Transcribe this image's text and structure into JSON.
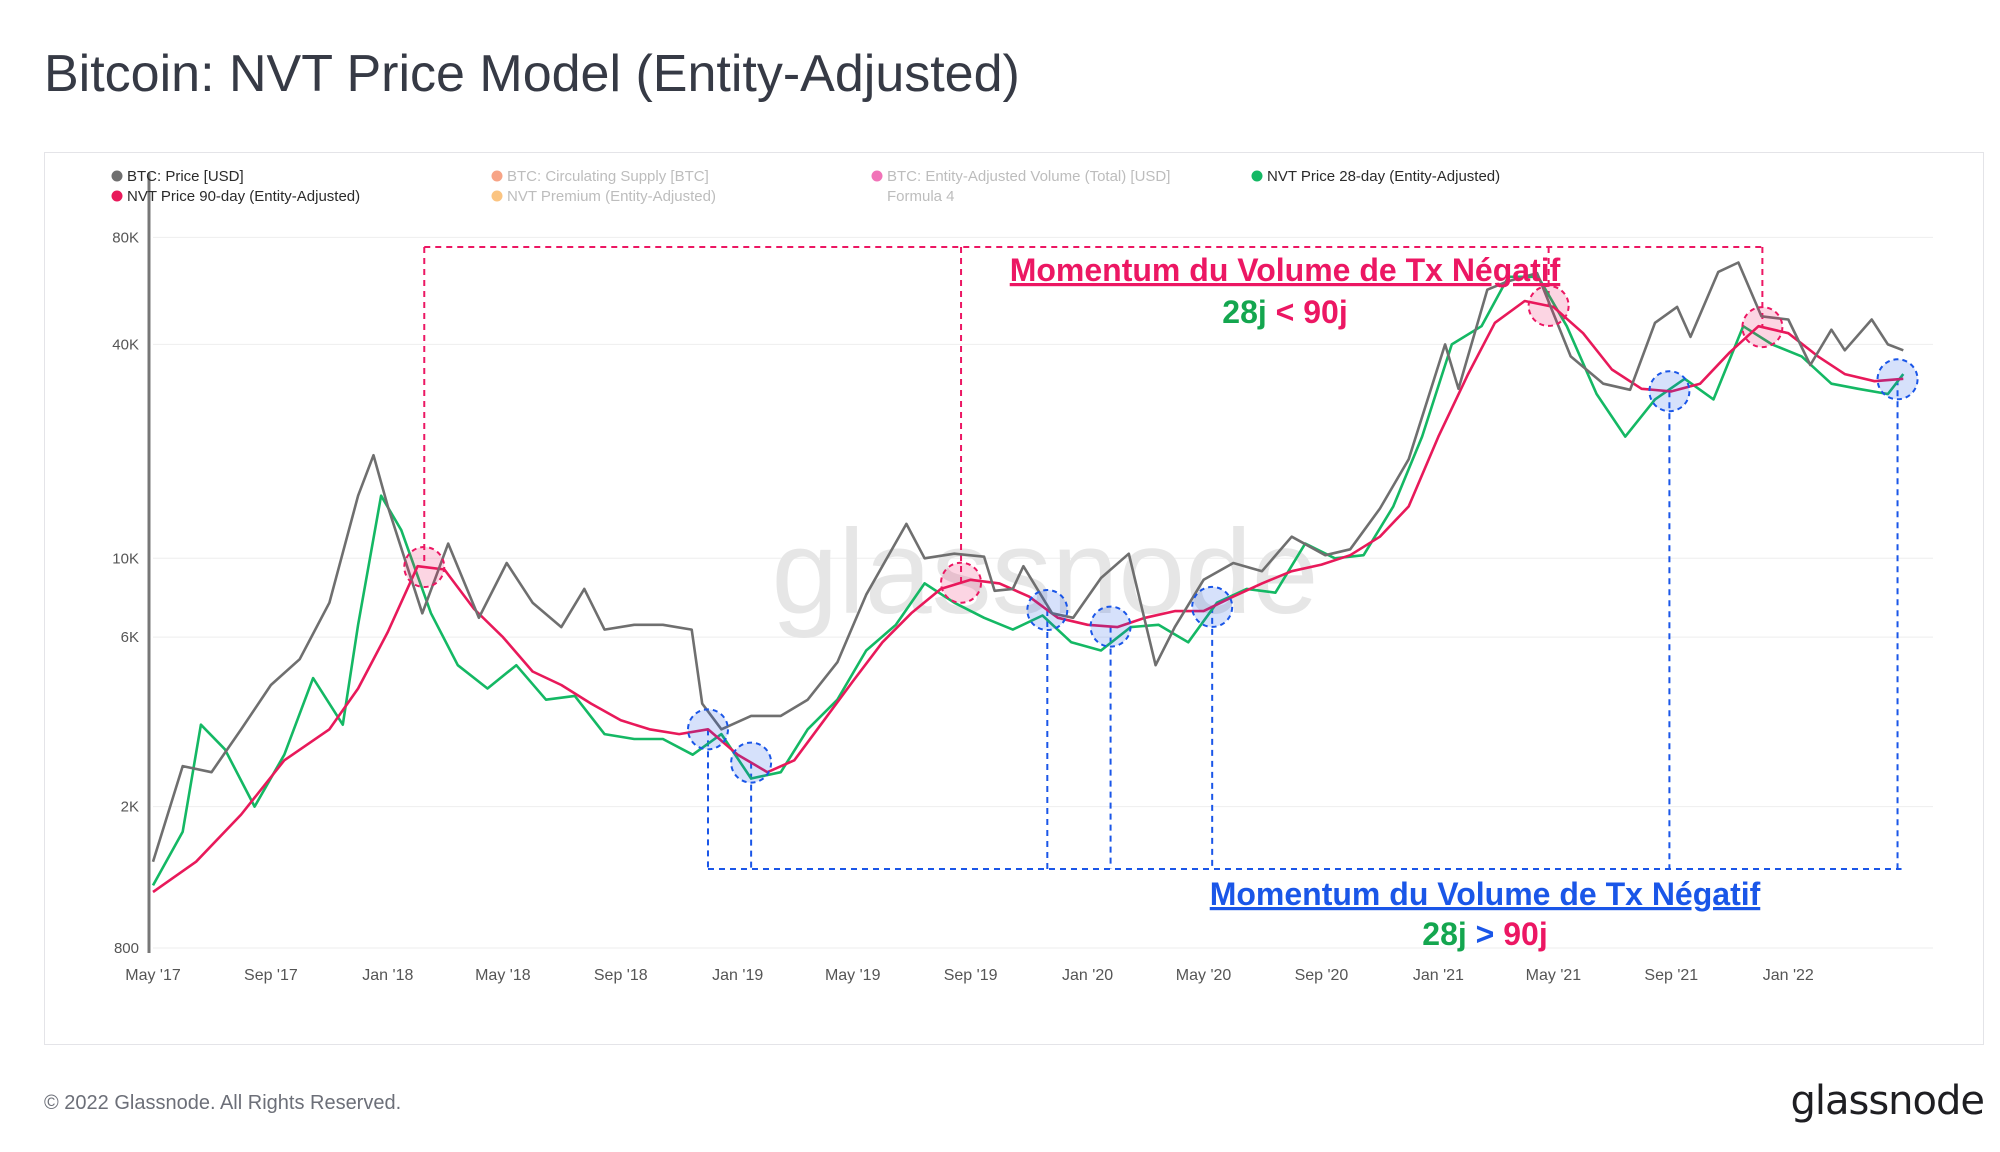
{
  "header": {
    "title": "Bitcoin: NVT Price Model (Entity-Adjusted)"
  },
  "footer": {
    "copyright": "© 2022 Glassnode. All Rights Reserved.",
    "logo": "glassnode"
  },
  "watermark": "glassnode",
  "chart_data": {
    "type": "line",
    "log_scale": true,
    "ylim": [
      800,
      100000
    ],
    "yticks": [
      {
        "label": "800",
        "value": 800
      },
      {
        "label": "2K",
        "value": 2000
      },
      {
        "label": "6K",
        "value": 6000
      },
      {
        "label": "10K",
        "value": 10000
      },
      {
        "label": "40K",
        "value": 40000
      },
      {
        "label": "80K",
        "value": 80000
      }
    ],
    "xlim": [
      "2017-05-01",
      "2022-06-01"
    ],
    "xticks": [
      {
        "label": "May '17",
        "date": "2017-05-01"
      },
      {
        "label": "Sep '17",
        "date": "2017-09-01"
      },
      {
        "label": "Jan '18",
        "date": "2018-01-01"
      },
      {
        "label": "May '18",
        "date": "2018-05-01"
      },
      {
        "label": "Sep '18",
        "date": "2018-09-01"
      },
      {
        "label": "Jan '19",
        "date": "2019-01-01"
      },
      {
        "label": "May '19",
        "date": "2019-05-01"
      },
      {
        "label": "Sep '19",
        "date": "2019-09-01"
      },
      {
        "label": "Jan '20",
        "date": "2020-01-01"
      },
      {
        "label": "May '20",
        "date": "2020-05-01"
      },
      {
        "label": "Sep '20",
        "date": "2020-09-01"
      },
      {
        "label": "Jan '21",
        "date": "2021-01-01"
      },
      {
        "label": "May '21",
        "date": "2021-05-01"
      },
      {
        "label": "Sep '21",
        "date": "2021-09-01"
      },
      {
        "label": "Jan '22",
        "date": "2022-01-01"
      }
    ],
    "legend": [
      {
        "label": "BTC: Price [USD]",
        "color": "#6f6f6f",
        "active": true
      },
      {
        "label": "BTC: Circulating Supply [BTC]",
        "color": "#f15a22",
        "active": false
      },
      {
        "label": "BTC: Entity-Adjusted Volume (Total) [USD]",
        "color": "#e6007e",
        "active": false
      },
      {
        "label": "NVT Price 28-day (Entity-Adjusted)",
        "color": "#14b864",
        "active": true
      },
      {
        "label": "NVT Price 90-day (Entity-Adjusted)",
        "color": "#e8195a",
        "active": true
      },
      {
        "label": "NVT Premium (Entity-Adjusted)",
        "color": "#f7931a",
        "active": false
      },
      {
        "label": "Formula 4",
        "color": "",
        "active": false
      }
    ],
    "series": [
      {
        "name": "BTC: Price [USD]",
        "color": "#6f6f6f",
        "points": [
          [
            "2017-05-01",
            1400
          ],
          [
            "2017-06-01",
            2600
          ],
          [
            "2017-07-01",
            2500
          ],
          [
            "2017-08-01",
            3300
          ],
          [
            "2017-09-01",
            4400
          ],
          [
            "2017-10-01",
            5200
          ],
          [
            "2017-11-01",
            7500
          ],
          [
            "2017-12-01",
            15000
          ],
          [
            "2017-12-17",
            19500
          ],
          [
            "2018-01-01",
            14000
          ],
          [
            "2018-02-06",
            7000
          ],
          [
            "2018-03-05",
            11000
          ],
          [
            "2018-04-06",
            6800
          ],
          [
            "2018-05-05",
            9700
          ],
          [
            "2018-06-01",
            7500
          ],
          [
            "2018-07-01",
            6400
          ],
          [
            "2018-07-25",
            8200
          ],
          [
            "2018-08-15",
            6300
          ],
          [
            "2018-09-15",
            6500
          ],
          [
            "2018-10-15",
            6500
          ],
          [
            "2018-11-14",
            6300
          ],
          [
            "2018-11-25",
            3900
          ],
          [
            "2018-12-15",
            3300
          ],
          [
            "2019-01-15",
            3600
          ],
          [
            "2019-02-15",
            3600
          ],
          [
            "2019-03-15",
            4000
          ],
          [
            "2019-04-15",
            5100
          ],
          [
            "2019-05-15",
            7900
          ],
          [
            "2019-06-26",
            12500
          ],
          [
            "2019-07-15",
            10000
          ],
          [
            "2019-08-15",
            10300
          ],
          [
            "2019-09-15",
            10100
          ],
          [
            "2019-09-26",
            8100
          ],
          [
            "2019-10-15",
            8200
          ],
          [
            "2019-10-26",
            9500
          ],
          [
            "2019-11-25",
            7000
          ],
          [
            "2019-12-17",
            6800
          ],
          [
            "2020-01-15",
            8800
          ],
          [
            "2020-02-13",
            10300
          ],
          [
            "2020-03-12",
            5000
          ],
          [
            "2020-04-01",
            6400
          ],
          [
            "2020-05-01",
            8700
          ],
          [
            "2020-06-01",
            9700
          ],
          [
            "2020-07-01",
            9200
          ],
          [
            "2020-08-01",
            11500
          ],
          [
            "2020-09-05",
            10200
          ],
          [
            "2020-10-01",
            10600
          ],
          [
            "2020-11-01",
            13800
          ],
          [
            "2020-12-01",
            19000
          ],
          [
            "2021-01-08",
            40000
          ],
          [
            "2021-01-22",
            30000
          ],
          [
            "2021-02-21",
            57000
          ],
          [
            "2021-03-13",
            60000
          ],
          [
            "2021-04-14",
            63500
          ],
          [
            "2021-05-19",
            37000
          ],
          [
            "2021-06-22",
            31000
          ],
          [
            "2021-07-20",
            29800
          ],
          [
            "2021-08-15",
            46000
          ],
          [
            "2021-09-07",
            51000
          ],
          [
            "2021-09-21",
            42000
          ],
          [
            "2021-10-20",
            64000
          ],
          [
            "2021-11-10",
            68000
          ],
          [
            "2021-12-04",
            48000
          ],
          [
            "2022-01-01",
            47000
          ],
          [
            "2022-01-24",
            35000
          ],
          [
            "2022-02-15",
            44000
          ],
          [
            "2022-03-01",
            38500
          ],
          [
            "2022-03-29",
            47000
          ],
          [
            "2022-04-15",
            40000
          ],
          [
            "2022-05-01",
            38500
          ]
        ]
      },
      {
        "name": "NVT Price 28-day (Entity-Adjusted)",
        "color": "#14b864",
        "points": [
          [
            "2017-05-01",
            1200
          ],
          [
            "2017-06-01",
            1700
          ],
          [
            "2017-06-20",
            3400
          ],
          [
            "2017-07-15",
            2900
          ],
          [
            "2017-08-15",
            2000
          ],
          [
            "2017-09-15",
            2800
          ],
          [
            "2017-10-15",
            4600
          ],
          [
            "2017-11-15",
            3400
          ],
          [
            "2017-12-01",
            6500
          ],
          [
            "2017-12-25",
            15000
          ],
          [
            "2018-01-15",
            12000
          ],
          [
            "2018-02-15",
            7000
          ],
          [
            "2018-03-15",
            5000
          ],
          [
            "2018-04-15",
            4300
          ],
          [
            "2018-05-15",
            5000
          ],
          [
            "2018-06-15",
            4000
          ],
          [
            "2018-07-15",
            4100
          ],
          [
            "2018-08-15",
            3200
          ],
          [
            "2018-09-15",
            3100
          ],
          [
            "2018-10-15",
            3100
          ],
          [
            "2018-11-15",
            2800
          ],
          [
            "2018-12-15",
            3200
          ],
          [
            "2019-01-15",
            2400
          ],
          [
            "2019-02-15",
            2500
          ],
          [
            "2019-03-15",
            3300
          ],
          [
            "2019-04-15",
            4000
          ],
          [
            "2019-05-15",
            5500
          ],
          [
            "2019-06-15",
            6500
          ],
          [
            "2019-07-15",
            8500
          ],
          [
            "2019-08-15",
            7500
          ],
          [
            "2019-09-15",
            6800
          ],
          [
            "2019-10-15",
            6300
          ],
          [
            "2019-11-15",
            6900
          ],
          [
            "2019-12-15",
            5800
          ],
          [
            "2020-01-15",
            5500
          ],
          [
            "2020-02-15",
            6400
          ],
          [
            "2020-03-15",
            6500
          ],
          [
            "2020-04-15",
            5800
          ],
          [
            "2020-05-15",
            7500
          ],
          [
            "2020-06-15",
            8200
          ],
          [
            "2020-07-15",
            8000
          ],
          [
            "2020-08-15",
            11000
          ],
          [
            "2020-09-15",
            10000
          ],
          [
            "2020-10-15",
            10200
          ],
          [
            "2020-11-15",
            14000
          ],
          [
            "2020-12-15",
            22000
          ],
          [
            "2021-01-15",
            40000
          ],
          [
            "2021-02-15",
            45000
          ],
          [
            "2021-03-15",
            62000
          ],
          [
            "2021-04-15",
            62000
          ],
          [
            "2021-05-15",
            45000
          ],
          [
            "2021-06-15",
            29000
          ],
          [
            "2021-07-15",
            22000
          ],
          [
            "2021-08-15",
            28000
          ],
          [
            "2021-09-15",
            32000
          ],
          [
            "2021-10-15",
            28000
          ],
          [
            "2021-11-15",
            45000
          ],
          [
            "2021-12-15",
            40000
          ],
          [
            "2022-01-15",
            37000
          ],
          [
            "2022-02-15",
            31000
          ],
          [
            "2022-03-15",
            30000
          ],
          [
            "2022-04-15",
            29000
          ],
          [
            "2022-05-01",
            33000
          ]
        ]
      },
      {
        "name": "NVT Price 90-day (Entity-Adjusted)",
        "color": "#e8195a",
        "points": [
          [
            "2017-05-01",
            1150
          ],
          [
            "2017-06-15",
            1400
          ],
          [
            "2017-08-01",
            1900
          ],
          [
            "2017-09-15",
            2700
          ],
          [
            "2017-11-01",
            3300
          ],
          [
            "2017-12-01",
            4300
          ],
          [
            "2018-01-01",
            6200
          ],
          [
            "2018-02-01",
            9500
          ],
          [
            "2018-03-01",
            9300
          ],
          [
            "2018-04-01",
            7200
          ],
          [
            "2018-05-01",
            6000
          ],
          [
            "2018-06-01",
            4800
          ],
          [
            "2018-07-01",
            4400
          ],
          [
            "2018-08-01",
            3900
          ],
          [
            "2018-09-01",
            3500
          ],
          [
            "2018-10-01",
            3300
          ],
          [
            "2018-11-01",
            3200
          ],
          [
            "2018-12-01",
            3300
          ],
          [
            "2019-01-01",
            2800
          ],
          [
            "2019-02-01",
            2500
          ],
          [
            "2019-03-01",
            2700
          ],
          [
            "2019-04-01",
            3500
          ],
          [
            "2019-05-01",
            4500
          ],
          [
            "2019-06-01",
            5800
          ],
          [
            "2019-07-01",
            7000
          ],
          [
            "2019-08-01",
            8200
          ],
          [
            "2019-09-01",
            8700
          ],
          [
            "2019-10-01",
            8500
          ],
          [
            "2019-11-01",
            7800
          ],
          [
            "2019-12-01",
            6800
          ],
          [
            "2020-01-01",
            6500
          ],
          [
            "2020-02-01",
            6400
          ],
          [
            "2020-03-01",
            6800
          ],
          [
            "2020-04-01",
            7100
          ],
          [
            "2020-05-01",
            7100
          ],
          [
            "2020-06-01",
            7800
          ],
          [
            "2020-07-01",
            8500
          ],
          [
            "2020-08-01",
            9200
          ],
          [
            "2020-09-01",
            9600
          ],
          [
            "2020-10-01",
            10200
          ],
          [
            "2020-11-01",
            11500
          ],
          [
            "2020-12-01",
            14000
          ],
          [
            "2021-01-01",
            22000
          ],
          [
            "2021-02-01",
            33000
          ],
          [
            "2021-03-01",
            46000
          ],
          [
            "2021-04-01",
            53000
          ],
          [
            "2021-05-01",
            51000
          ],
          [
            "2021-06-01",
            43000
          ],
          [
            "2021-07-01",
            34000
          ],
          [
            "2021-08-01",
            30000
          ],
          [
            "2021-09-01",
            29500
          ],
          [
            "2021-10-01",
            31000
          ],
          [
            "2021-11-01",
            38000
          ],
          [
            "2021-12-01",
            45000
          ],
          [
            "2022-01-01",
            43000
          ],
          [
            "2022-02-01",
            37000
          ],
          [
            "2022-03-01",
            33000
          ],
          [
            "2022-04-01",
            31500
          ],
          [
            "2022-05-01",
            32000
          ]
        ]
      }
    ],
    "annotations": [
      {
        "label": "Momentum du Volume de Tx Négatif",
        "sublabel_left": "28j",
        "sublabel_op": "<",
        "sublabel_right": "90j",
        "color": "#ec1763",
        "markers": [
          "2018-02-08",
          "2019-08-22",
          "2021-04-26",
          "2021-12-05"
        ]
      },
      {
        "label": "Momentum du Volume de Tx Négatif",
        "sublabel_left": "28j",
        "sublabel_op": ">",
        "sublabel_right": "90j",
        "color": "#1a56e8",
        "markers": [
          "2018-12-01",
          "2019-01-15",
          "2019-11-20",
          "2020-01-25",
          "2020-05-10",
          "2021-08-30",
          "2022-04-25"
        ]
      }
    ]
  }
}
